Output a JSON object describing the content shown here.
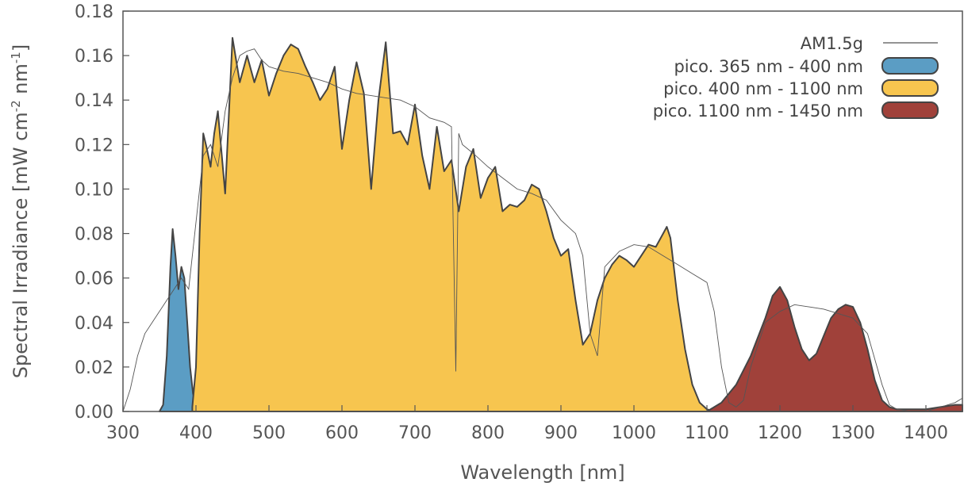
{
  "chart_data": {
    "type": "area",
    "xlabel": "Wavelength [nm]",
    "ylabel_main": "Spectral Irradiance [mW cm",
    "ylabel_sup1": "-2",
    "ylabel_mid": " nm",
    "ylabel_sup2": "-1",
    "ylabel_end": "]",
    "xlim": [
      300,
      1450
    ],
    "ylim": [
      0,
      0.18
    ],
    "xticks": [
      300,
      400,
      500,
      600,
      700,
      800,
      900,
      1000,
      1100,
      1200,
      1300,
      1400
    ],
    "xtick_labels": [
      "300",
      "400",
      "500",
      "600",
      "700",
      "800",
      "900",
      "1000",
      "1100",
      "1200",
      "1300",
      "1400"
    ],
    "yticks": [
      0,
      0.02,
      0.04,
      0.06,
      0.08,
      0.1,
      0.12,
      0.14,
      0.16,
      0.18
    ],
    "ytick_labels": [
      "0.00",
      "0.02",
      "0.04",
      "0.06",
      "0.08",
      "0.10",
      "0.12",
      "0.14",
      "0.16",
      "0.18"
    ],
    "grid": false,
    "legend_position": "top-right",
    "series": [
      {
        "name": "AM1.5g",
        "kind": "line",
        "color": "#555555",
        "x": [
          300,
          310,
          320,
          330,
          340,
          350,
          360,
          370,
          380,
          390,
          400,
          410,
          420,
          430,
          440,
          450,
          460,
          470,
          480,
          490,
          500,
          520,
          540,
          560,
          580,
          600,
          620,
          640,
          660,
          680,
          700,
          720,
          740,
          750,
          756,
          760,
          765,
          780,
          800,
          820,
          840,
          860,
          880,
          900,
          920,
          930,
          940,
          950,
          960,
          980,
          1000,
          1020,
          1040,
          1060,
          1080,
          1100,
          1110,
          1120,
          1130,
          1140,
          1150,
          1160,
          1180,
          1200,
          1220,
          1240,
          1260,
          1280,
          1300,
          1320,
          1340,
          1350,
          1360,
          1380,
          1400,
          1420,
          1440,
          1450
        ],
        "y": [
          0.0,
          0.01,
          0.025,
          0.035,
          0.04,
          0.045,
          0.05,
          0.055,
          0.06,
          0.055,
          0.085,
          0.115,
          0.12,
          0.11,
          0.135,
          0.15,
          0.16,
          0.162,
          0.163,
          0.158,
          0.155,
          0.153,
          0.152,
          0.15,
          0.148,
          0.145,
          0.143,
          0.142,
          0.141,
          0.14,
          0.137,
          0.132,
          0.13,
          0.128,
          0.018,
          0.125,
          0.12,
          0.116,
          0.11,
          0.105,
          0.1,
          0.098,
          0.095,
          0.086,
          0.08,
          0.07,
          0.035,
          0.025,
          0.065,
          0.072,
          0.075,
          0.074,
          0.07,
          0.066,
          0.062,
          0.058,
          0.045,
          0.02,
          0.004,
          0.002,
          0.005,
          0.02,
          0.04,
          0.045,
          0.048,
          0.047,
          0.046,
          0.044,
          0.042,
          0.035,
          0.012,
          0.003,
          0.001,
          0.0,
          0.0,
          0.002,
          0.004,
          0.006
        ]
      },
      {
        "name": "pico. 365 nm - 400 nm",
        "kind": "area",
        "color": "#5b9dc4",
        "x": [
          350,
          355,
          360,
          365,
          368,
          372,
          376,
          380,
          384,
          388,
          392,
          396,
          400,
          405,
          410
        ],
        "y": [
          0.0,
          0.003,
          0.025,
          0.065,
          0.082,
          0.07,
          0.055,
          0.065,
          0.06,
          0.04,
          0.02,
          0.008,
          0.003,
          0.001,
          0.0
        ]
      },
      {
        "name": "pico. 400 nm - 1100 nm",
        "kind": "area",
        "color": "#f7c54f",
        "x": [
          395,
          400,
          405,
          410,
          415,
          420,
          425,
          430,
          440,
          450,
          460,
          470,
          480,
          490,
          500,
          510,
          520,
          530,
          540,
          550,
          560,
          570,
          580,
          590,
          600,
          610,
          620,
          630,
          640,
          650,
          660,
          670,
          680,
          690,
          700,
          710,
          720,
          730,
          740,
          750,
          760,
          770,
          780,
          790,
          800,
          810,
          820,
          830,
          840,
          850,
          860,
          870,
          880,
          890,
          900,
          910,
          920,
          930,
          940,
          950,
          960,
          970,
          980,
          990,
          1000,
          1010,
          1020,
          1030,
          1040,
          1045,
          1050,
          1060,
          1070,
          1080,
          1090,
          1100,
          1110
        ],
        "y": [
          0.002,
          0.02,
          0.08,
          0.125,
          0.118,
          0.11,
          0.125,
          0.135,
          0.098,
          0.168,
          0.148,
          0.16,
          0.148,
          0.158,
          0.142,
          0.152,
          0.16,
          0.165,
          0.163,
          0.155,
          0.148,
          0.14,
          0.145,
          0.155,
          0.118,
          0.14,
          0.157,
          0.143,
          0.1,
          0.14,
          0.166,
          0.125,
          0.126,
          0.12,
          0.138,
          0.115,
          0.1,
          0.128,
          0.108,
          0.113,
          0.09,
          0.11,
          0.118,
          0.096,
          0.105,
          0.11,
          0.09,
          0.093,
          0.092,
          0.095,
          0.102,
          0.1,
          0.09,
          0.078,
          0.07,
          0.073,
          0.05,
          0.03,
          0.035,
          0.05,
          0.06,
          0.066,
          0.07,
          0.068,
          0.065,
          0.07,
          0.075,
          0.074,
          0.08,
          0.083,
          0.078,
          0.05,
          0.028,
          0.012,
          0.004,
          0.001,
          0.0
        ]
      },
      {
        "name": "pico. 1100 nm - 1450 nm",
        "kind": "area",
        "color": "#a0413a",
        "x": [
          1100,
          1120,
          1140,
          1160,
          1180,
          1190,
          1200,
          1210,
          1220,
          1230,
          1240,
          1250,
          1260,
          1270,
          1280,
          1290,
          1300,
          1310,
          1320,
          1330,
          1340,
          1350,
          1360,
          1380,
          1400,
          1420,
          1440,
          1450
        ],
        "y": [
          0.0,
          0.004,
          0.012,
          0.025,
          0.042,
          0.052,
          0.056,
          0.05,
          0.038,
          0.028,
          0.023,
          0.026,
          0.034,
          0.042,
          0.046,
          0.048,
          0.047,
          0.04,
          0.028,
          0.014,
          0.005,
          0.002,
          0.001,
          0.001,
          0.001,
          0.002,
          0.003,
          0.003
        ]
      }
    ]
  }
}
